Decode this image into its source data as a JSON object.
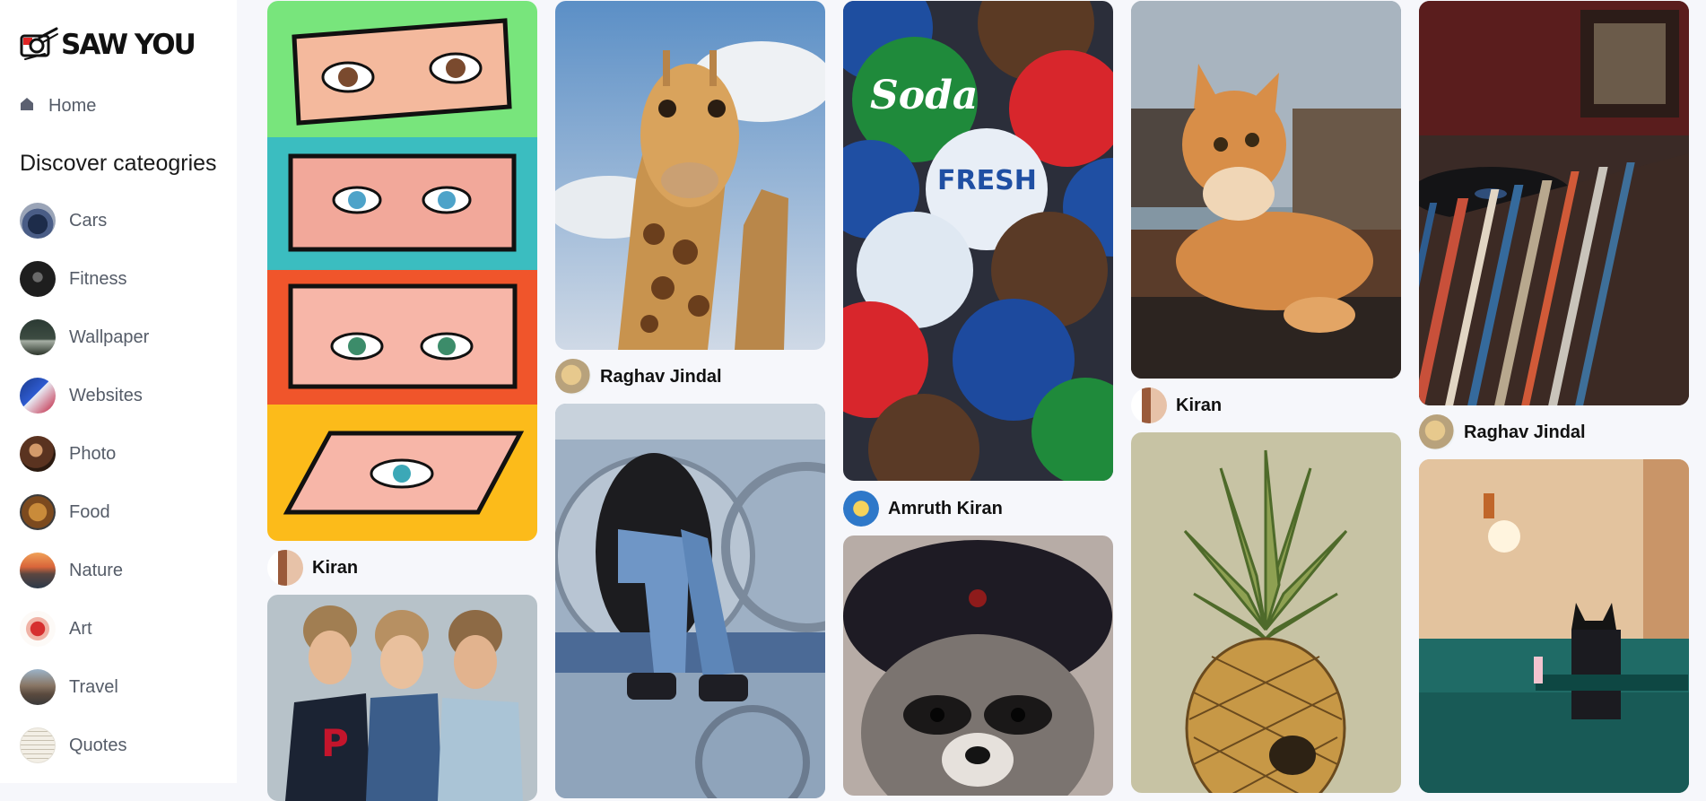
{
  "app": {
    "logo_text": "SAW YOU"
  },
  "nav": {
    "home_label": "Home"
  },
  "sidebar": {
    "discover_title": "Discover cateogries",
    "categories": [
      {
        "label": "Cars"
      },
      {
        "label": "Fitness"
      },
      {
        "label": "Wallpaper"
      },
      {
        "label": "Websites"
      },
      {
        "label": "Photo"
      },
      {
        "label": "Food"
      },
      {
        "label": "Nature"
      },
      {
        "label": "Art"
      },
      {
        "label": "Travel"
      },
      {
        "label": "Quotes"
      }
    ]
  },
  "feed": {
    "pins": [
      {
        "author": "Kiran"
      },
      {
        "author": "Raghav Jindal"
      },
      {
        "author": "Amruth Kiran"
      },
      {
        "author": "Kiran"
      },
      {
        "author": "Raghav Jindal"
      }
    ]
  },
  "colors": {
    "page_background": "#f6f7fb",
    "sidebar_background": "#ffffff",
    "text_muted": "#555c68",
    "text_strong": "#111111"
  }
}
